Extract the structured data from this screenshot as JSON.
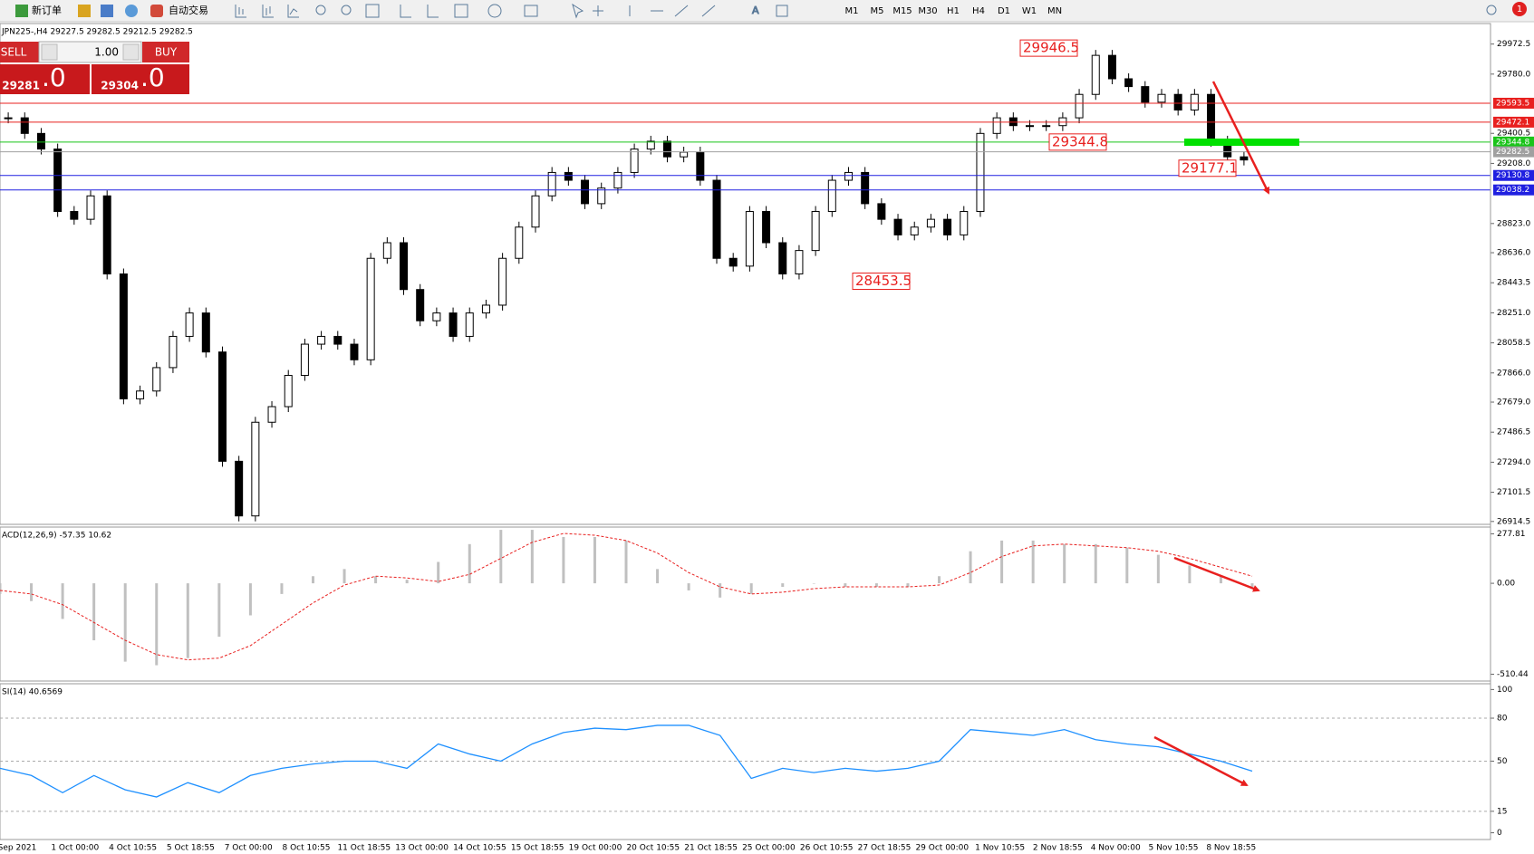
{
  "toolbar": {
    "new_order": "新订单",
    "auto_trading": "自动交易",
    "timeframes": [
      "M1",
      "M5",
      "M15",
      "M30",
      "H1",
      "H4",
      "D1",
      "W1",
      "MN"
    ],
    "alert_count": "1"
  },
  "order_panel": {
    "sell": "SELL",
    "buy": "BUY",
    "volume": "1.00",
    "sell_price_main": "29281",
    "sell_price_frac": ".0",
    "buy_price_main": "29304",
    "buy_price_frac": ".0"
  },
  "chart_data": [
    {
      "type": "candlestick",
      "title": "JPN225-,H4  29227.5 29282.5 29212.5 29282.5",
      "closes": [
        29500,
        29400,
        29300,
        28900,
        28850,
        29000,
        28500,
        27700,
        27750,
        27900,
        28100,
        28250,
        28000,
        27300,
        26950,
        27550,
        27650,
        27850,
        28050,
        28100,
        28050,
        27950,
        28600,
        28700,
        28400,
        28200,
        28250,
        28100,
        28250,
        28300,
        28600,
        28800,
        29000,
        29150,
        29100,
        28950,
        29050,
        29150,
        29300,
        29350,
        29250,
        29280,
        29100,
        28600,
        28550,
        28900,
        28700,
        28500,
        28650,
        28900,
        29100,
        29150,
        28950,
        28850,
        28750,
        28800,
        28850,
        28750,
        28900,
        29400,
        29500,
        29450,
        29450,
        29450,
        29500,
        29650,
        29900,
        29750,
        29700,
        29600,
        29650,
        29550,
        29650,
        29350,
        29250,
        29230
      ],
      "ylim": [
        26896,
        30098
      ],
      "yticks": [
        29972.5,
        {
          "value": 29780,
          "label": "29780.0"
        },
        29400.5,
        {
          "value": 29208,
          "label": "29208.0"
        },
        {
          "value": 28823,
          "label": "28823.0"
        },
        {
          "value": 28636,
          "label": "28636.0"
        },
        28443.5,
        {
          "value": 28251,
          "label": "28251.0"
        },
        28058.5,
        {
          "value": 27866,
          "label": "27866.0"
        },
        {
          "value": 27679,
          "label": "27679.0"
        },
        27486.5,
        {
          "value": 27294,
          "label": "27294.0"
        },
        27101.5,
        26914.5
      ],
      "levels": [
        {
          "value": 29593.5,
          "color": "#e8201f"
        },
        {
          "value": 29472.1,
          "color": "#e8201f"
        },
        {
          "value": 29344.8,
          "color": "#19c419"
        },
        {
          "value": 29282.5,
          "color": "#a0a0a0"
        },
        {
          "value": 29130.8,
          "color": "#2020e0"
        },
        {
          "value": 29038.2,
          "color": "#2020e0"
        }
      ],
      "annotations": [
        29946.5,
        29344.8,
        29177.1,
        28453.5
      ]
    },
    {
      "type": "macd",
      "title": "ACD(12,26,9) -57.35 10.62",
      "histogram": [
        -60,
        -100,
        -200,
        -320,
        -440,
        -460,
        -420,
        -300,
        -180,
        -60,
        40,
        80,
        40,
        20,
        120,
        220,
        300,
        300,
        260,
        260,
        240,
        80,
        -40,
        -80,
        -60,
        -20,
        0,
        -20,
        -20,
        -20,
        40,
        180,
        240,
        240,
        220,
        220,
        200,
        160,
        100,
        40,
        -20
      ],
      "signal": [
        -40,
        -60,
        -120,
        -220,
        -320,
        -400,
        -430,
        -420,
        -350,
        -230,
        -110,
        -10,
        40,
        30,
        10,
        50,
        140,
        230,
        280,
        270,
        240,
        170,
        60,
        -20,
        -60,
        -50,
        -30,
        -20,
        -20,
        -20,
        -10,
        60,
        150,
        210,
        220,
        210,
        200,
        180,
        140,
        90,
        40
      ],
      "ylim": [
        -548.7,
        310.6
      ],
      "yticks": [
        277.81,
        {
          "value": 0,
          "label": "0.00"
        },
        -510.44
      ]
    },
    {
      "type": "line",
      "title": "SI(14) 40.6569",
      "color": "#1e90ff",
      "values": [
        45,
        40,
        28,
        40,
        30,
        25,
        35,
        28,
        40,
        45,
        48,
        50,
        50,
        45,
        62,
        55,
        50,
        62,
        70,
        73,
        72,
        75,
        75,
        68,
        38,
        45,
        42,
        45,
        43,
        45,
        50,
        72,
        70,
        68,
        72,
        65,
        62,
        60,
        55,
        50,
        43
      ],
      "ylim": [
        -4.7,
        103.4
      ],
      "yticks": [
        100,
        80,
        50,
        15,
        0
      ],
      "time_labels": [
        "Sep 2021",
        "1 Oct 00:00",
        "4 Oct 10:55",
        "5 Oct 18:55",
        "7 Oct 00:00",
        "8 Oct 10:55",
        "11 Oct 18:55",
        "13 Oct 00:00",
        "14 Oct 10:55",
        "15 Oct 18:55",
        "19 Oct 00:00",
        "20 Oct 10:55",
        "21 Oct 18:55",
        "25 Oct 00:00",
        "26 Oct 10:55",
        "27 Oct 18:55",
        "29 Oct 00:00",
        "1 Nov 10:55",
        "2 Nov 18:55",
        "4 Nov 00:00",
        "5 Nov 10:55",
        "8 Nov 18:55"
      ]
    }
  ]
}
